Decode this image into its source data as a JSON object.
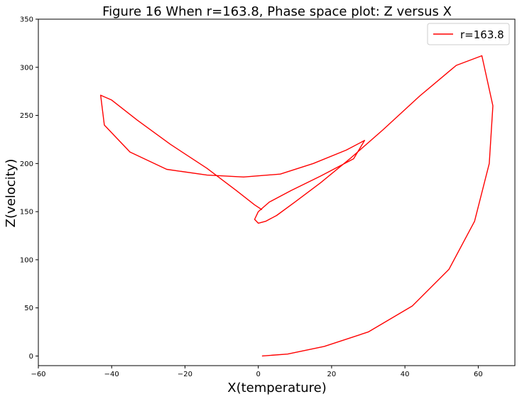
{
  "chart_data": {
    "type": "line",
    "title": "Figure 16 When r=163.8, Phase space plot: Z versus X",
    "xlabel": "X(temperature)",
    "ylabel": "Z(velocity)",
    "xlim": [
      -60,
      70
    ],
    "ylim": [
      -10,
      350
    ],
    "xticks": [
      -60,
      -40,
      -20,
      0,
      20,
      40,
      60
    ],
    "yticks": [
      0,
      50,
      100,
      150,
      200,
      250,
      300,
      350
    ],
    "grid": false,
    "legend_position": "top-right",
    "series": [
      {
        "name": "r=163.8",
        "color": "#ff0000",
        "x": [
          1,
          8,
          18,
          30,
          42,
          52,
          59,
          63,
          64,
          61,
          54,
          44,
          34,
          25,
          17,
          10,
          5,
          2,
          0,
          -1,
          0,
          3,
          9,
          17,
          26,
          29,
          24,
          15,
          6,
          -4,
          -14,
          -25,
          -35,
          -42,
          -43,
          -40,
          -33,
          -24,
          -14,
          -6,
          -1,
          1
        ],
        "y": [
          0,
          2,
          10,
          25,
          52,
          90,
          140,
          200,
          260,
          312,
          302,
          270,
          235,
          205,
          180,
          160,
          146,
          140,
          138,
          142,
          150,
          160,
          172,
          187,
          205,
          224,
          214,
          200,
          189,
          186,
          188,
          194,
          212,
          240,
          271,
          266,
          245,
          220,
          195,
          172,
          157,
          152
        ]
      }
    ]
  }
}
